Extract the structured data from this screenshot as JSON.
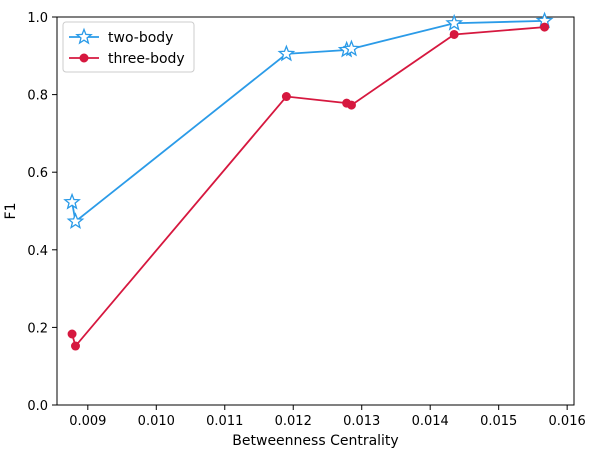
{
  "chart_data": {
    "type": "line",
    "xlabel": "Betweenness Centrality",
    "ylabel": "F1",
    "xlim": [
      0.00855,
      0.0161
    ],
    "ylim": [
      0.0,
      1.0
    ],
    "x_ticks": [
      "0.009",
      "0.010",
      "0.011",
      "0.012",
      "0.013",
      "0.014",
      "0.015",
      "0.016"
    ],
    "y_ticks": [
      "0.0",
      "0.2",
      "0.4",
      "0.6",
      "0.8",
      "1.0"
    ],
    "x_tick_values": [
      0.009,
      0.01,
      0.011,
      0.012,
      0.013,
      0.014,
      0.015,
      0.016
    ],
    "y_tick_values": [
      0.0,
      0.2,
      0.4,
      0.6,
      0.8,
      1.0
    ],
    "grid": false,
    "legend_position": "top-left",
    "series": [
      {
        "name": "two-body",
        "color": "#2b9be8",
        "marker": "star",
        "x": [
          0.00877,
          0.00882,
          0.0119,
          0.01278,
          0.01285,
          0.01435,
          0.01567
        ],
        "y": [
          0.523,
          0.473,
          0.905,
          0.915,
          0.918,
          0.984,
          0.99
        ]
      },
      {
        "name": "three-body",
        "color": "#d6183f",
        "marker": "circle",
        "x": [
          0.00877,
          0.00882,
          0.0119,
          0.01278,
          0.01285,
          0.01435,
          0.01567
        ],
        "y": [
          0.183,
          0.152,
          0.795,
          0.778,
          0.773,
          0.955,
          0.974
        ]
      }
    ]
  }
}
